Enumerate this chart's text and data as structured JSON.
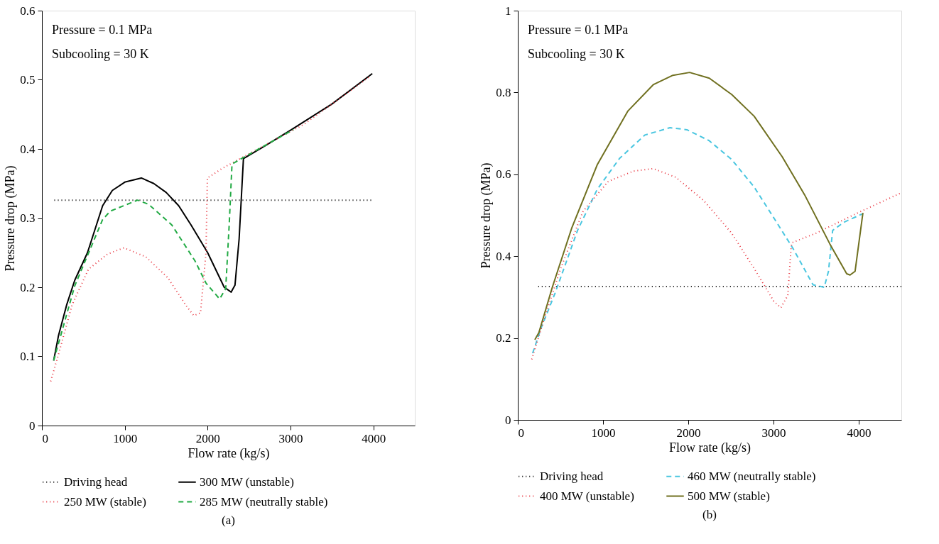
{
  "chart_data": [
    {
      "type": "line",
      "xlabel": "Flow rate (kg/s)",
      "ylabel": "Pressure drop (MPa)",
      "xlim": [
        0,
        4500
      ],
      "ylim": [
        0,
        0.6
      ],
      "xticks": [
        0,
        1000,
        2000,
        3000,
        4000
      ],
      "yticks": [
        0,
        0.1,
        0.2,
        0.3,
        0.4,
        0.5,
        0.6
      ],
      "grid": false,
      "legend": "bottom",
      "annotations": [
        "Pressure = 0.1 MPa",
        "Subcooling = 30 K",
        "(a)"
      ],
      "series": [
        {
          "name": "Driving head",
          "color": "#000000",
          "line_style": "dotted",
          "x": [
            150,
            4000
          ],
          "values": [
            0.326,
            0.326
          ]
        },
        {
          "name": "300 MW (unstable)",
          "color": "#000000",
          "line_style": "solid",
          "x": [
            142,
            200,
            300,
            396,
            550,
            733,
            850,
            1000,
            1200,
            1350,
            1500,
            1650,
            1800,
            2000,
            2200,
            2284,
            2330,
            2380,
            2432,
            2700,
            3000,
            3500,
            3987
          ],
          "values": [
            0.094,
            0.13,
            0.175,
            0.21,
            0.25,
            0.318,
            0.34,
            0.352,
            0.358,
            0.35,
            0.337,
            0.318,
            0.29,
            0.25,
            0.2,
            0.193,
            0.203,
            0.27,
            0.386,
            0.405,
            0.427,
            0.465,
            0.509
          ]
        },
        {
          "name": "250 MW (stable)",
          "color": "#e8323c",
          "line_style": "dotted",
          "x": [
            106,
            198,
            363,
            561,
            792,
            990,
            1254,
            1518,
            1749,
            1832,
            1914,
            1980,
            1997,
            2178,
            2376,
            3168,
            3960
          ],
          "values": [
            0.064,
            0.102,
            0.174,
            0.226,
            0.248,
            0.257,
            0.244,
            0.214,
            0.172,
            0.159,
            0.163,
            0.25,
            0.358,
            0.372,
            0.385,
            0.436,
            0.505
          ]
        },
        {
          "name": "285 MW (neutrally stable)",
          "color": "#22aa44",
          "line_style": "dashed",
          "x": [
            142,
            396,
            733,
            825,
            1155,
            1287,
            1568,
            1848,
            1980,
            2145,
            2218,
            2260,
            2294,
            2393,
            3036
          ],
          "values": [
            0.094,
            0.202,
            0.298,
            0.31,
            0.326,
            0.32,
            0.29,
            0.238,
            0.206,
            0.183,
            0.198,
            0.29,
            0.378,
            0.385,
            0.428
          ]
        }
      ]
    },
    {
      "type": "line",
      "xlabel": "Flow rate (kg/s)",
      "ylabel": "Pressure drop (MPa)",
      "xlim": [
        0,
        4500
      ],
      "ylim": [
        0,
        1
      ],
      "xticks": [
        0,
        1000,
        2000,
        3000,
        4000
      ],
      "yticks": [
        0,
        0.2,
        0.4,
        0.6,
        0.8,
        1
      ],
      "grid": false,
      "legend": "bottom",
      "annotations": [
        "Pressure = 0.1 MPa",
        "Subcooling = 30 K",
        "(b)"
      ],
      "series": [
        {
          "name": "Driving head",
          "color": "#000000",
          "line_style": "dotted",
          "x": [
            240,
            4500
          ],
          "values": [
            0.326,
            0.326
          ]
        },
        {
          "name": "460 MW (neutrally stable)",
          "color": "#4ac6e0",
          "line_style": "dashed",
          "x": [
            174,
            273,
            438,
            701,
            931,
            1194,
            1490,
            1786,
            1984,
            2247,
            2510,
            2773,
            3036,
            3234,
            3464,
            3595,
            3645,
            3694,
            3826,
            4039
          ],
          "values": [
            0.163,
            0.224,
            0.31,
            0.463,
            0.563,
            0.639,
            0.696,
            0.714,
            0.709,
            0.682,
            0.636,
            0.569,
            0.483,
            0.417,
            0.33,
            0.324,
            0.363,
            0.463,
            0.483,
            0.503
          ]
        },
        {
          "name": "400 MW (unstable)",
          "color": "#e8323c",
          "line_style": "dotted",
          "x": [
            164,
            306,
            503,
            766,
            1063,
            1359,
            1589,
            1852,
            2181,
            2510,
            2773,
            3003,
            3086,
            3168,
            3207,
            3217,
            3497,
            3990,
            4500
          ],
          "values": [
            0.148,
            0.244,
            0.37,
            0.51,
            0.583,
            0.608,
            0.614,
            0.593,
            0.536,
            0.456,
            0.37,
            0.29,
            0.274,
            0.304,
            0.423,
            0.433,
            0.456,
            0.506,
            0.555
          ]
        },
        {
          "name": "500 MW (stable)",
          "color": "#707020",
          "line_style": "solid",
          "x": [
            200,
            247,
            405,
            635,
            931,
            1293,
            1589,
            1819,
            2016,
            2247,
            2510,
            2773,
            3102,
            3365,
            3661,
            3859,
            3898,
            3957,
            4049
          ],
          "values": [
            0.196,
            0.213,
            0.324,
            0.47,
            0.623,
            0.755,
            0.819,
            0.842,
            0.849,
            0.835,
            0.795,
            0.742,
            0.643,
            0.55,
            0.43,
            0.357,
            0.354,
            0.363,
            0.506
          ]
        }
      ]
    }
  ]
}
